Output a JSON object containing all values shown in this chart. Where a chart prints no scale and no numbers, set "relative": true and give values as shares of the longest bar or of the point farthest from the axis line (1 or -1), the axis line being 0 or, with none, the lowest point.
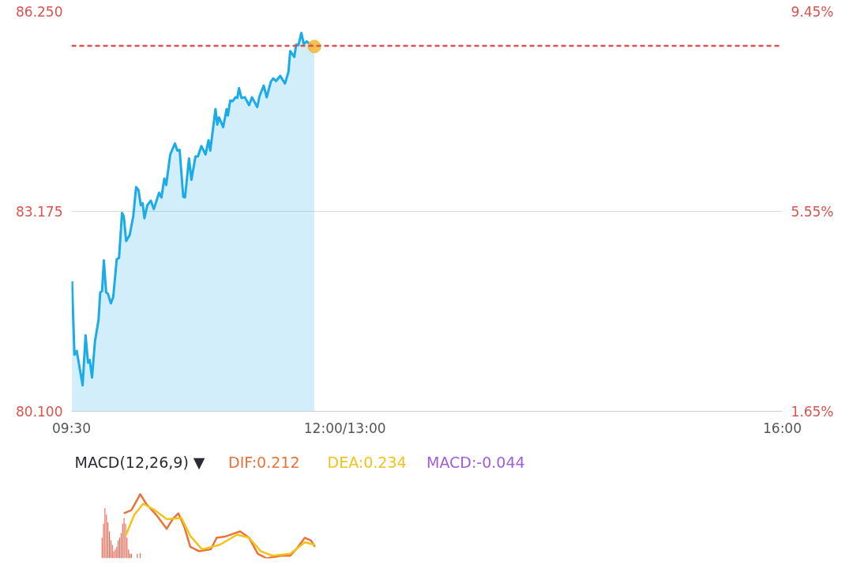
{
  "chart_data": [
    {
      "type": "area",
      "xlim": [
        9.5,
        16
      ],
      "xticks": [
        {
          "value": 9.5,
          "label": "09:30"
        },
        {
          "value": 12,
          "label": "12:00/13:00"
        },
        {
          "value": 16,
          "label": "16:00"
        }
      ],
      "ylim": [
        80.1,
        86.25
      ],
      "yticks": [
        {
          "value": 80.1,
          "label": "80.100"
        },
        {
          "value": 83.175,
          "label": "83.175"
        },
        {
          "value": 86.25,
          "label": "86.250"
        }
      ],
      "y2lim": [
        1.65,
        9.45
      ],
      "y2ticks": [
        {
          "value": 1.65,
          "label": "1.65%"
        },
        {
          "value": 5.55,
          "label": "5.55%"
        },
        {
          "value": 9.45,
          "label": "9.45%"
        }
      ],
      "grid": "y",
      "legend": false,
      "ref_lines": [
        {
          "axis": "y",
          "value": 85.72,
          "color": "#d9534f",
          "line_style": "dashed"
        }
      ],
      "series": [
        {
          "color": "#1aabe8",
          "x": [
            9.505,
            9.527,
            9.548,
            9.602,
            9.629,
            9.651,
            9.667,
            9.688,
            9.715,
            9.747,
            9.763,
            9.78,
            9.796,
            9.817,
            9.833,
            9.86,
            9.882,
            9.914,
            9.935,
            9.962,
            9.978,
            10.0,
            10.032,
            10.065,
            10.091,
            10.113,
            10.134,
            10.151,
            10.167,
            10.194,
            10.226,
            10.253,
            10.301,
            10.323,
            10.349,
            10.366,
            10.403,
            10.446,
            10.468,
            10.489,
            10.522,
            10.538,
            10.575,
            10.597,
            10.634,
            10.656,
            10.688,
            10.726,
            10.753,
            10.769,
            10.817,
            10.833,
            10.849,
            10.887,
            10.919,
            10.93,
            10.952,
            10.973,
            11.0,
            11.016,
            11.032,
            11.054,
            11.086,
            11.124,
            11.151,
            11.199,
            11.22,
            11.258,
            11.285,
            11.323,
            11.344,
            11.371,
            11.409,
            11.452,
            11.484,
            11.5,
            11.538,
            11.554,
            11.575,
            11.602,
            11.624,
            11.651,
            11.677,
            11.72
          ],
          "values": [
            82.1,
            80.97,
            81.03,
            80.5,
            81.27,
            80.85,
            80.89,
            80.62,
            81.18,
            81.5,
            81.93,
            81.95,
            82.42,
            81.93,
            81.91,
            81.76,
            81.86,
            82.44,
            82.46,
            83.15,
            83.1,
            82.72,
            82.81,
            83.1,
            83.55,
            83.5,
            83.27,
            83.3,
            83.07,
            83.27,
            83.34,
            83.21,
            83.46,
            83.39,
            83.68,
            83.58,
            84.05,
            84.22,
            84.11,
            84.12,
            83.4,
            83.39,
            83.99,
            83.66,
            84.02,
            84.02,
            84.18,
            84.05,
            84.27,
            84.11,
            84.75,
            84.51,
            84.62,
            84.47,
            84.75,
            84.65,
            84.88,
            84.87,
            84.93,
            84.92,
            85.07,
            84.92,
            84.93,
            84.81,
            84.93,
            84.78,
            84.95,
            85.11,
            84.93,
            85.17,
            85.22,
            85.18,
            85.26,
            85.14,
            85.32,
            85.64,
            85.55,
            85.74,
            85.73,
            85.92,
            85.75,
            85.79,
            85.75,
            85.71
          ]
        },
        {
          "type": "scatter",
          "marker": "circle",
          "color": "#f5b731",
          "x": [
            11.72
          ],
          "values": [
            85.71
          ]
        }
      ]
    },
    {
      "type": "line",
      "title": "MACD(12,26,9) ▼",
      "relative": true,
      "xlim": [
        9.5,
        16
      ],
      "tick_labels": false,
      "legend": "top",
      "annotations": [
        "MACD:-0.044"
      ],
      "series": [
        {
          "type": "bar",
          "color": "#e8604c",
          "x": [
            9.78,
            9.793,
            9.806,
            9.82,
            9.833,
            9.847,
            9.86,
            9.874,
            9.887,
            9.901,
            9.914,
            9.927,
            9.941,
            9.954,
            9.968,
            9.981,
            9.995,
            10.008,
            10.022,
            10.035,
            10.048,
            10.102,
            10.129
          ],
          "values": [
            0.32,
            0.54,
            0.78,
            0.68,
            0.56,
            0.42,
            0.28,
            0.21,
            0.11,
            0.14,
            0.18,
            0.28,
            0.32,
            0.39,
            0.54,
            0.63,
            0.54,
            0.32,
            0.14,
            0.07,
            0.07,
            0.07,
            0.08
          ]
        },
        {
          "name": "DIF:0.212",
          "color": "#e8733a",
          "x": [
            9.978,
            10.048,
            10.129,
            10.183,
            10.274,
            10.371,
            10.425,
            10.478,
            10.532,
            10.586,
            10.667,
            10.774,
            10.828,
            10.909,
            11.043,
            11.124,
            11.204,
            11.285,
            11.419,
            11.5,
            11.554,
            11.634,
            11.688,
            11.726
          ],
          "values": [
            0.7,
            0.75,
            1.0,
            0.85,
            0.68,
            0.46,
            0.61,
            0.7,
            0.49,
            0.18,
            0.11,
            0.14,
            0.32,
            0.34,
            0.42,
            0.32,
            0.07,
            0,
            0.04,
            0.04,
            0.14,
            0.32,
            0.28,
            0.18
          ]
        },
        {
          "name": "DEA:0.234",
          "color": "#f2c318",
          "x": [
            9.995,
            10.075,
            10.156,
            10.263,
            10.371,
            10.505,
            10.586,
            10.694,
            10.855,
            11.016,
            11.124,
            11.231,
            11.339,
            11.5,
            11.634,
            11.726
          ],
          "values": [
            0.35,
            0.68,
            0.85,
            0.75,
            0.61,
            0.63,
            0.35,
            0.14,
            0.21,
            0.37,
            0.32,
            0.11,
            0.04,
            0.07,
            0.25,
            0.21
          ]
        }
      ]
    }
  ]
}
